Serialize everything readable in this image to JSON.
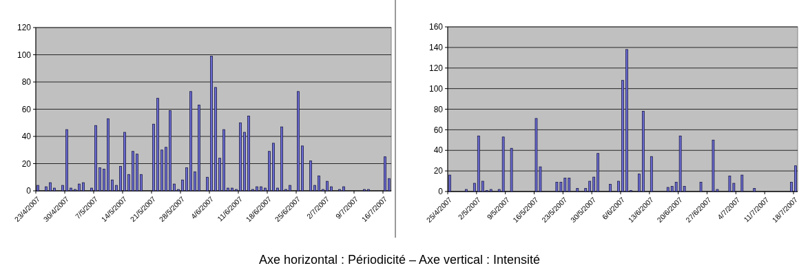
{
  "chart_data": [
    {
      "type": "bar",
      "categories": [
        "23/4/2007",
        null,
        null,
        null,
        null,
        null,
        null,
        "30/4/2007",
        null,
        null,
        null,
        null,
        null,
        null,
        "7/5/2007",
        null,
        null,
        null,
        null,
        null,
        null,
        "14/5/2007",
        null,
        null,
        null,
        null,
        null,
        null,
        "21/5/2007",
        null,
        null,
        null,
        null,
        null,
        null,
        "28/5/2007",
        null,
        null,
        null,
        null,
        null,
        null,
        "4/6/2007",
        null,
        null,
        null,
        null,
        null,
        null,
        "11/6/2007",
        null,
        null,
        null,
        null,
        null,
        null,
        "18/6/2007",
        null,
        null,
        null,
        null,
        null,
        null,
        "25/6/2007",
        null,
        null,
        null,
        null,
        null,
        null,
        "2/7/2007",
        null,
        null,
        null,
        null,
        null,
        null,
        "9/7/2007",
        null,
        null,
        null,
        null,
        null,
        null,
        "16/7/2007",
        null
      ],
      "values": [
        4,
        null,
        3,
        6,
        2,
        null,
        4,
        45,
        2,
        1,
        5,
        6,
        null,
        2,
        48,
        17,
        16,
        53,
        8,
        4,
        18,
        43,
        12,
        29,
        27,
        12,
        null,
        null,
        49,
        68,
        30,
        32,
        59,
        5,
        1,
        8,
        17,
        73,
        14,
        63,
        null,
        10,
        99,
        76,
        24,
        45,
        2,
        2,
        1,
        50,
        43,
        55,
        1,
        3,
        3,
        2,
        29,
        35,
        2,
        47,
        1,
        4,
        null,
        73,
        33,
        null,
        22,
        4,
        11,
        1,
        7,
        3,
        null,
        1,
        3,
        null,
        null,
        null,
        null,
        1,
        1,
        null,
        null,
        null,
        25,
        9
      ],
      "color": "#6b6bd0",
      "ylim": [
        0,
        120
      ],
      "yticks": [
        0,
        20,
        40,
        60,
        80,
        100,
        120
      ],
      "grid": "y"
    },
    {
      "type": "bar",
      "categories": [
        "25/4/2007",
        null,
        null,
        null,
        null,
        null,
        null,
        "2/5/2007",
        null,
        null,
        null,
        null,
        null,
        null,
        "9/5/2007",
        null,
        null,
        null,
        null,
        null,
        null,
        "16/5/2007",
        null,
        null,
        null,
        null,
        null,
        null,
        "23/5/2007",
        null,
        null,
        null,
        null,
        null,
        null,
        "30/5/2007",
        null,
        null,
        null,
        null,
        null,
        null,
        "6/6/2007",
        null,
        null,
        null,
        null,
        null,
        null,
        "13/6/2007",
        null,
        null,
        null,
        null,
        null,
        null,
        "20/6/2007",
        null,
        null,
        null,
        null,
        null,
        null,
        "27/6/2007",
        null,
        null,
        null,
        null,
        null,
        null,
        "4/7/2007",
        null,
        null,
        null,
        null,
        null,
        null,
        "11/7/2007",
        null,
        null,
        null,
        null,
        null,
        null,
        "18/7/2007"
      ],
      "values": [
        16,
        null,
        null,
        null,
        2,
        null,
        8,
        54,
        10,
        1,
        2,
        null,
        2,
        53,
        null,
        42,
        null,
        null,
        null,
        null,
        null,
        71,
        24,
        null,
        null,
        null,
        9,
        9,
        13,
        13,
        null,
        3,
        null,
        3,
        10,
        14,
        37,
        null,
        null,
        7,
        null,
        10,
        108,
        138,
        1,
        null,
        17,
        78,
        null,
        34,
        null,
        null,
        null,
        4,
        5,
        9,
        54,
        5,
        null,
        null,
        null,
        9,
        null,
        null,
        50,
        2,
        null,
        null,
        15,
        8,
        null,
        16,
        null,
        null,
        3,
        null,
        null,
        null,
        null,
        null,
        null,
        null,
        null,
        9,
        25
      ],
      "color": "#6b6bd0",
      "ylim": [
        0,
        160
      ],
      "yticks": [
        0,
        20,
        40,
        60,
        80,
        100,
        120,
        140,
        160
      ],
      "grid": "y"
    },
    {
      "type": "other",
      "title": "Axe horizontal : Périodicité – Axe vertical : Intensité"
    }
  ]
}
